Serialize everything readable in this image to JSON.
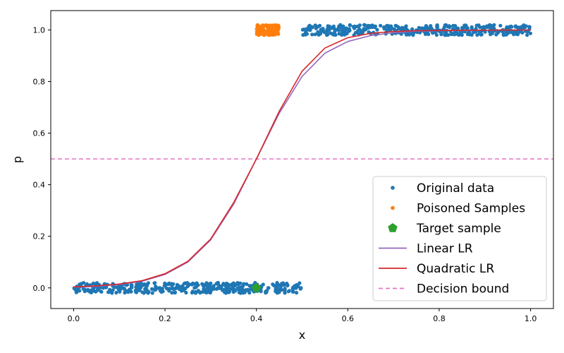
{
  "chart_data": {
    "type": "scatter",
    "xlabel": "x",
    "ylabel": "p",
    "xlim": [
      -0.05,
      1.05
    ],
    "ylim": [
      -0.08,
      1.075
    ],
    "xticks": [
      "0.0",
      "0.2",
      "0.4",
      "0.6",
      "0.8",
      "1.0"
    ],
    "yticks": [
      "0.0",
      "0.2",
      "0.4",
      "0.6",
      "0.8",
      "1.0"
    ],
    "grid": false,
    "legend_position": "lower-right",
    "series": [
      {
        "name": "Original data",
        "kind": "scatter",
        "color": "#1f77b4",
        "clusters": [
          {
            "x_range": [
              0.0,
              0.5
            ],
            "y_center": 0.0,
            "y_jitter": 0.02,
            "count": 400
          },
          {
            "x_range": [
              0.5,
              1.0
            ],
            "y_center": 1.0,
            "y_jitter": 0.02,
            "count": 400
          }
        ]
      },
      {
        "name": "Poisoned Samples",
        "kind": "scatter",
        "color": "#ff7f0e",
        "clusters": [
          {
            "x_range": [
              0.4,
              0.45
            ],
            "y_center": 1.0,
            "y_jitter": 0.02,
            "count": 120
          }
        ]
      },
      {
        "name": "Target sample",
        "kind": "marker",
        "color": "#2ca02c",
        "marker": "pentagon",
        "x": 0.4,
        "y": 0.0
      },
      {
        "name": "Linear LR",
        "kind": "line",
        "color": "#9467bd",
        "x": [
          0.0,
          0.05,
          0.1,
          0.15,
          0.2,
          0.25,
          0.3,
          0.35,
          0.4,
          0.45,
          0.5,
          0.55,
          0.6,
          0.65,
          0.7,
          0.75,
          0.8,
          0.85,
          0.9,
          0.95,
          1.0
        ],
        "y": [
          0.003,
          0.006,
          0.013,
          0.026,
          0.052,
          0.1,
          0.186,
          0.324,
          0.5,
          0.677,
          0.82,
          0.91,
          0.955,
          0.978,
          0.989,
          0.995,
          0.997,
          0.998,
          0.999,
          0.9995,
          0.9998
        ]
      },
      {
        "name": "Quadratic LR",
        "kind": "line",
        "color": "#d62728",
        "x": [
          0.0,
          0.05,
          0.1,
          0.15,
          0.2,
          0.25,
          0.3,
          0.35,
          0.4,
          0.45,
          0.5,
          0.55,
          0.6,
          0.65,
          0.7,
          0.75,
          0.8,
          0.85,
          0.9,
          0.95,
          1.0
        ],
        "y": [
          0.004,
          0.008,
          0.015,
          0.028,
          0.055,
          0.103,
          0.19,
          0.33,
          0.5,
          0.685,
          0.84,
          0.93,
          0.97,
          0.987,
          0.994,
          0.997,
          0.998,
          0.999,
          0.9993,
          0.9995,
          0.9996
        ]
      },
      {
        "name": "Decision bound",
        "kind": "hline",
        "color": "#e377c2",
        "y": 0.5,
        "style": "dashed"
      }
    ]
  }
}
